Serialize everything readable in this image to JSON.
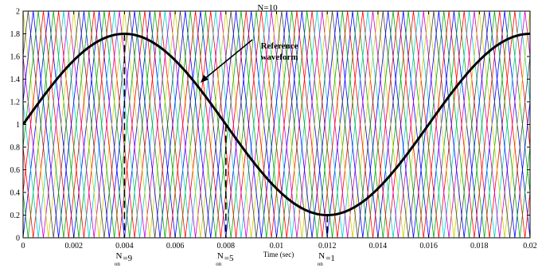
{
  "chart_data": {
    "type": "line",
    "title": "N=10",
    "xlabel": "Time (sec)",
    "ylabel": "",
    "xlim": [
      0,
      0.02
    ],
    "ylim": [
      0,
      2
    ],
    "x_ticks": [
      "0",
      "0.002",
      "0.004",
      "0.006",
      "0.008",
      "0.01",
      "0.012",
      "0.014",
      "0.016",
      "0.018",
      "0.02"
    ],
    "y_ticks": [
      "0",
      "0.2",
      "0.4",
      "0.6",
      "0.8",
      "1",
      "1.2",
      "1.4",
      "1.6",
      "1.8",
      "2"
    ],
    "grid": false,
    "carrier": {
      "count": 10,
      "amplitude": 2,
      "period": 0.002,
      "colors": [
        "#0000ff",
        "#00aa00",
        "#ff0000",
        "#00cccc",
        "#cc00cc",
        "#cccc00",
        "#444444",
        "#0000ff",
        "#00aa00",
        "#ff0000"
      ]
    },
    "series": [
      {
        "name": "Reference waveform",
        "offset": 1,
        "amplitude": 0.8,
        "frequency": 62.5
      }
    ],
    "annotations": {
      "reference_label": [
        "Reference",
        "waveform"
      ],
      "markers": [
        {
          "x": 0.004,
          "y": 1.8,
          "label_main": "N",
          "label_sub": "on",
          "label_value": "=9"
        },
        {
          "x": 0.008,
          "y": 1.0,
          "label_main": "N",
          "label_sub": "on",
          "label_value": "=5"
        },
        {
          "x": 0.012,
          "y": 0.2,
          "label_main": "N",
          "label_sub": "on",
          "label_value": "=1"
        }
      ]
    }
  }
}
